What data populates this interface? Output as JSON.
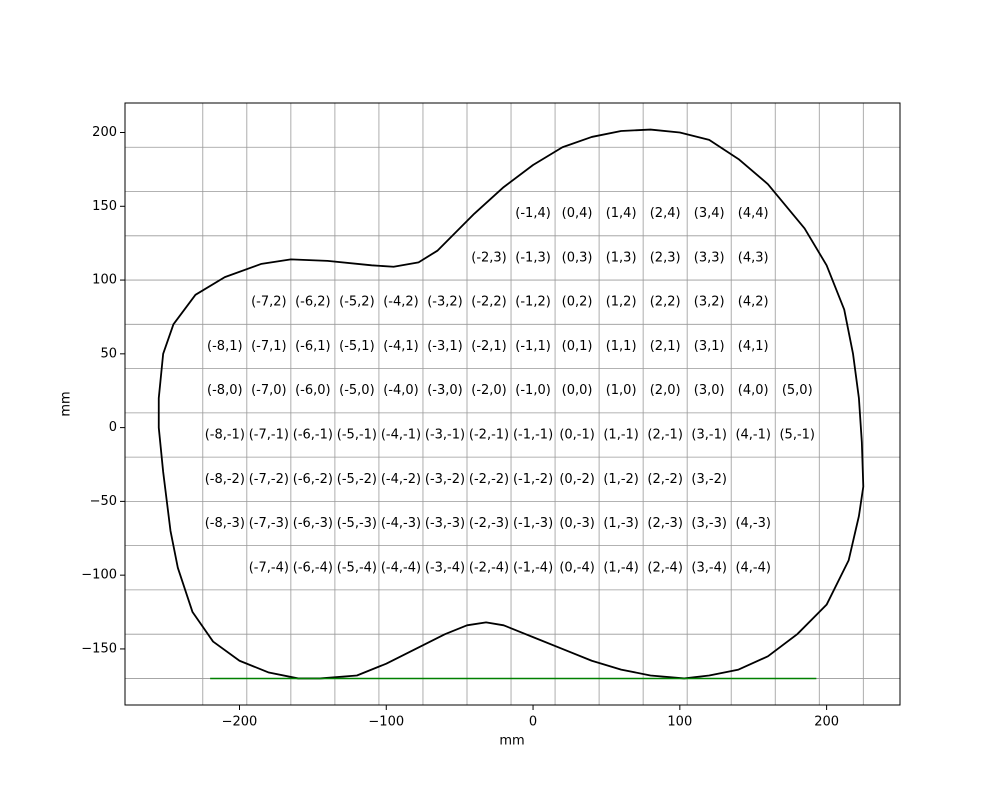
{
  "chart_data": {
    "type": "line",
    "xlabel": "mm",
    "ylabel": "mm",
    "xlim": [
      -278,
      250
    ],
    "ylim": [
      -188,
      220
    ],
    "xticks": [
      {
        "value": -200,
        "label": "−200"
      },
      {
        "value": -100,
        "label": "−100"
      },
      0,
      100,
      200
    ],
    "yticks": [
      {
        "value": -150,
        "label": "−150"
      },
      {
        "value": -100,
        "label": "−100"
      },
      {
        "value": -50,
        "label": "−50"
      },
      0,
      50,
      100,
      150,
      200
    ],
    "xgrid": [
      -225,
      -195,
      -165,
      -135,
      -105,
      -75,
      -45,
      -15,
      15,
      45,
      75,
      105,
      135,
      165,
      195,
      225
    ],
    "ygrid": [
      190,
      160,
      130,
      100,
      70,
      40,
      10,
      -20,
      -50,
      -80,
      -110,
      -140,
      -170
    ],
    "grid_color": "#999999",
    "outline": {
      "color": "#000000",
      "x": [
        -145,
        -120,
        -100,
        -80,
        -60,
        -45,
        -32,
        -20,
        0,
        20,
        40,
        60,
        80,
        103,
        120,
        140,
        160,
        180,
        200,
        215,
        222,
        225,
        224,
        222,
        218,
        212,
        200,
        185,
        160,
        140,
        120,
        100,
        80,
        60,
        40,
        20,
        0,
        -20,
        -40,
        -55,
        -65,
        -78,
        -95,
        -110,
        -140,
        -165,
        -185,
        -210,
        -230,
        -245,
        -252,
        -255,
        -255,
        -252,
        -247,
        -242,
        -232,
        -218,
        -200,
        -180,
        -160,
        -145
      ],
      "y": [
        -170,
        -168,
        -160,
        -150,
        -140,
        -134,
        -132,
        -134,
        -142,
        -150,
        -158,
        -164,
        -168,
        -170,
        -168,
        -164,
        -155,
        -140,
        -120,
        -90,
        -60,
        -40,
        -10,
        20,
        50,
        80,
        110,
        135,
        165,
        182,
        195,
        200,
        202,
        201,
        197,
        190,
        178,
        163,
        145,
        130,
        120,
        112,
        109,
        110,
        113,
        114,
        111,
        102,
        90,
        70,
        50,
        20,
        0,
        -30,
        -70,
        -95,
        -125,
        -145,
        -158,
        -166,
        -170,
        -170
      ]
    },
    "baseline": {
      "color": "#008000",
      "x": [
        -220,
        193
      ],
      "y": [
        -170,
        -170
      ]
    },
    "cells": [
      {
        "label": "(-1,4)",
        "x": 0,
        "y": 145
      },
      {
        "label": "(0,4)",
        "x": 30,
        "y": 145
      },
      {
        "label": "(1,4)",
        "x": 60,
        "y": 145
      },
      {
        "label": "(2,4)",
        "x": 90,
        "y": 145
      },
      {
        "label": "(3,4)",
        "x": 120,
        "y": 145
      },
      {
        "label": "(4,4)",
        "x": 150,
        "y": 145
      },
      {
        "label": "(-2,3)",
        "x": -30,
        "y": 115
      },
      {
        "label": "(-1,3)",
        "x": 0,
        "y": 115
      },
      {
        "label": "(0,3)",
        "x": 30,
        "y": 115
      },
      {
        "label": "(1,3)",
        "x": 60,
        "y": 115
      },
      {
        "label": "(2,3)",
        "x": 90,
        "y": 115
      },
      {
        "label": "(3,3)",
        "x": 120,
        "y": 115
      },
      {
        "label": "(4,3)",
        "x": 150,
        "y": 115
      },
      {
        "label": "(-7,2)",
        "x": -180,
        "y": 85
      },
      {
        "label": "(-6,2)",
        "x": -150,
        "y": 85
      },
      {
        "label": "(-5,2)",
        "x": -120,
        "y": 85
      },
      {
        "label": "(-4,2)",
        "x": -90,
        "y": 85
      },
      {
        "label": "(-3,2)",
        "x": -60,
        "y": 85
      },
      {
        "label": "(-2,2)",
        "x": -30,
        "y": 85
      },
      {
        "label": "(-1,2)",
        "x": 0,
        "y": 85
      },
      {
        "label": "(0,2)",
        "x": 30,
        "y": 85
      },
      {
        "label": "(1,2)",
        "x": 60,
        "y": 85
      },
      {
        "label": "(2,2)",
        "x": 90,
        "y": 85
      },
      {
        "label": "(3,2)",
        "x": 120,
        "y": 85
      },
      {
        "label": "(4,2)",
        "x": 150,
        "y": 85
      },
      {
        "label": "(-8,1)",
        "x": -210,
        "y": 55
      },
      {
        "label": "(-7,1)",
        "x": -180,
        "y": 55
      },
      {
        "label": "(-6,1)",
        "x": -150,
        "y": 55
      },
      {
        "label": "(-5,1)",
        "x": -120,
        "y": 55
      },
      {
        "label": "(-4,1)",
        "x": -90,
        "y": 55
      },
      {
        "label": "(-3,1)",
        "x": -60,
        "y": 55
      },
      {
        "label": "(-2,1)",
        "x": -30,
        "y": 55
      },
      {
        "label": "(-1,1)",
        "x": 0,
        "y": 55
      },
      {
        "label": "(0,1)",
        "x": 30,
        "y": 55
      },
      {
        "label": "(1,1)",
        "x": 60,
        "y": 55
      },
      {
        "label": "(2,1)",
        "x": 90,
        "y": 55
      },
      {
        "label": "(3,1)",
        "x": 120,
        "y": 55
      },
      {
        "label": "(4,1)",
        "x": 150,
        "y": 55
      },
      {
        "label": "(-8,0)",
        "x": -210,
        "y": 25
      },
      {
        "label": "(-7,0)",
        "x": -180,
        "y": 25
      },
      {
        "label": "(-6,0)",
        "x": -150,
        "y": 25
      },
      {
        "label": "(-5,0)",
        "x": -120,
        "y": 25
      },
      {
        "label": "(-4,0)",
        "x": -90,
        "y": 25
      },
      {
        "label": "(-3,0)",
        "x": -60,
        "y": 25
      },
      {
        "label": "(-2,0)",
        "x": -30,
        "y": 25
      },
      {
        "label": "(-1,0)",
        "x": 0,
        "y": 25
      },
      {
        "label": "(0,0)",
        "x": 30,
        "y": 25
      },
      {
        "label": "(1,0)",
        "x": 60,
        "y": 25
      },
      {
        "label": "(2,0)",
        "x": 90,
        "y": 25
      },
      {
        "label": "(3,0)",
        "x": 120,
        "y": 25
      },
      {
        "label": "(4,0)",
        "x": 150,
        "y": 25
      },
      {
        "label": "(5,0)",
        "x": 180,
        "y": 25
      },
      {
        "label": "(-8,-1)",
        "x": -210,
        "y": -5
      },
      {
        "label": "(-7,-1)",
        "x": -180,
        "y": -5
      },
      {
        "label": "(-6,-1)",
        "x": -150,
        "y": -5
      },
      {
        "label": "(-5,-1)",
        "x": -120,
        "y": -5
      },
      {
        "label": "(-4,-1)",
        "x": -90,
        "y": -5
      },
      {
        "label": "(-3,-1)",
        "x": -60,
        "y": -5
      },
      {
        "label": "(-2,-1)",
        "x": -30,
        "y": -5
      },
      {
        "label": "(-1,-1)",
        "x": 0,
        "y": -5
      },
      {
        "label": "(0,-1)",
        "x": 30,
        "y": -5
      },
      {
        "label": "(1,-1)",
        "x": 60,
        "y": -5
      },
      {
        "label": "(2,-1)",
        "x": 90,
        "y": -5
      },
      {
        "label": "(3,-1)",
        "x": 120,
        "y": -5
      },
      {
        "label": "(4,-1)",
        "x": 150,
        "y": -5
      },
      {
        "label": "(5,-1)",
        "x": 180,
        "y": -5
      },
      {
        "label": "(-8,-2)",
        "x": -210,
        "y": -35
      },
      {
        "label": "(-7,-2)",
        "x": -180,
        "y": -35
      },
      {
        "label": "(-6,-2)",
        "x": -150,
        "y": -35
      },
      {
        "label": "(-5,-2)",
        "x": -120,
        "y": -35
      },
      {
        "label": "(-4,-2)",
        "x": -90,
        "y": -35
      },
      {
        "label": "(-3,-2)",
        "x": -60,
        "y": -35
      },
      {
        "label": "(-2,-2)",
        "x": -30,
        "y": -35
      },
      {
        "label": "(-1,-2)",
        "x": 0,
        "y": -35
      },
      {
        "label": "(0,-2)",
        "x": 30,
        "y": -35
      },
      {
        "label": "(1,-2)",
        "x": 60,
        "y": -35
      },
      {
        "label": "(2,-2)",
        "x": 90,
        "y": -35
      },
      {
        "label": "(3,-2)",
        "x": 120,
        "y": -35
      },
      {
        "label": "(-8,-3)",
        "x": -210,
        "y": -65
      },
      {
        "label": "(-7,-3)",
        "x": -180,
        "y": -65
      },
      {
        "label": "(-6,-3)",
        "x": -150,
        "y": -65
      },
      {
        "label": "(-5,-3)",
        "x": -120,
        "y": -65
      },
      {
        "label": "(-4,-3)",
        "x": -90,
        "y": -65
      },
      {
        "label": "(-3,-3)",
        "x": -60,
        "y": -65
      },
      {
        "label": "(-2,-3)",
        "x": -30,
        "y": -65
      },
      {
        "label": "(-1,-3)",
        "x": 0,
        "y": -65
      },
      {
        "label": "(0,-3)",
        "x": 30,
        "y": -65
      },
      {
        "label": "(1,-3)",
        "x": 60,
        "y": -65
      },
      {
        "label": "(2,-3)",
        "x": 90,
        "y": -65
      },
      {
        "label": "(3,-3)",
        "x": 120,
        "y": -65
      },
      {
        "label": "(4,-3)",
        "x": 150,
        "y": -65
      },
      {
        "label": "(-7,-4)",
        "x": -180,
        "y": -95
      },
      {
        "label": "(-6,-4)",
        "x": -150,
        "y": -95
      },
      {
        "label": "(-5,-4)",
        "x": -120,
        "y": -95
      },
      {
        "label": "(-4,-4)",
        "x": -90,
        "y": -95
      },
      {
        "label": "(-3,-4)",
        "x": -60,
        "y": -95
      },
      {
        "label": "(-2,-4)",
        "x": -30,
        "y": -95
      },
      {
        "label": "(-1,-4)",
        "x": 0,
        "y": -95
      },
      {
        "label": "(0,-4)",
        "x": 30,
        "y": -95
      },
      {
        "label": "(1,-4)",
        "x": 60,
        "y": -95
      },
      {
        "label": "(2,-4)",
        "x": 90,
        "y": -95
      },
      {
        "label": "(3,-4)",
        "x": 120,
        "y": -95
      },
      {
        "label": "(4,-4)",
        "x": 150,
        "y": -95
      }
    ]
  }
}
